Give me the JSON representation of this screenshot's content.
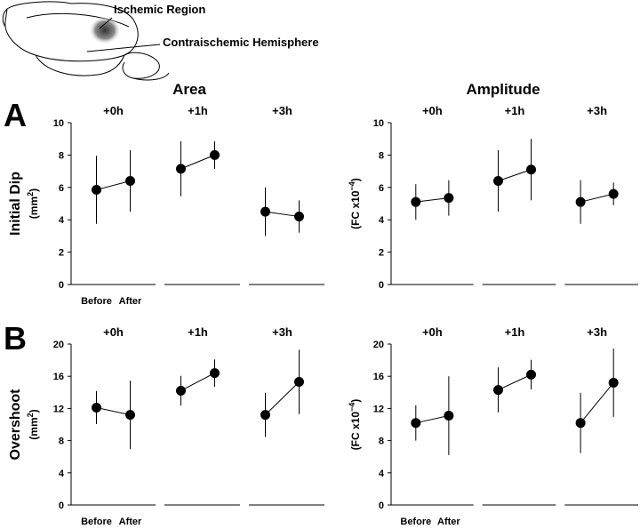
{
  "illustration": {
    "labels": [
      "Ischemic Region",
      "Contraischemic Hemisphere"
    ]
  },
  "columns": [
    "Area",
    "Amplitude"
  ],
  "panels": [
    "A",
    "B"
  ],
  "chart_data": [
    {
      "type": "dot-errorbar",
      "ylabel": "Initial Dip",
      "unit_parts": [
        "(mm",
        "2",
        ")"
      ],
      "groups": [
        "+0h",
        "+1h",
        "+3h"
      ],
      "categories": [
        "Before",
        "After"
      ],
      "values": [
        [
          5.85,
          6.4
        ],
        [
          7.15,
          8.0
        ],
        [
          4.5,
          4.2
        ]
      ],
      "errors": [
        [
          2.1,
          1.9
        ],
        [
          1.7,
          0.85
        ],
        [
          1.5,
          1.0
        ]
      ],
      "ylim": [
        0,
        10
      ],
      "yticks": [
        0,
        2,
        4,
        6,
        8,
        10
      ],
      "color": "#000000"
    },
    {
      "type": "dot-errorbar",
      "unit_parts": [
        "(FC x10",
        "−4",
        ")"
      ],
      "groups": [
        "+0h",
        "+1h",
        "+3h"
      ],
      "values": [
        [
          5.1,
          5.35
        ],
        [
          6.4,
          7.1
        ],
        [
          5.1,
          5.6
        ]
      ],
      "errors": [
        [
          1.1,
          1.1
        ],
        [
          1.9,
          1.9
        ],
        [
          1.35,
          0.7
        ]
      ],
      "ylim": [
        0,
        10
      ],
      "yticks": [
        0,
        2,
        4,
        6,
        8,
        10
      ],
      "color": "#000000"
    },
    {
      "type": "dot-errorbar",
      "ylabel": "Overshoot",
      "unit_parts": [
        "(mm",
        "2",
        ")"
      ],
      "groups": [
        "+0h",
        "+1h",
        "+3h"
      ],
      "categories": [
        "Before",
        "After"
      ],
      "values": [
        [
          12.1,
          11.2
        ],
        [
          14.2,
          16.4
        ],
        [
          11.2,
          15.3
        ]
      ],
      "errors": [
        [
          2.05,
          4.25
        ],
        [
          1.85,
          1.7
        ],
        [
          2.75,
          4.0
        ]
      ],
      "ylim": [
        0,
        20
      ],
      "yticks": [
        0,
        4,
        8,
        12,
        16,
        20
      ],
      "color": "#000000"
    },
    {
      "type": "dot-errorbar",
      "unit_parts": [
        "(FC x10",
        "−4",
        ")"
      ],
      "groups": [
        "+0h",
        "+1h",
        "+3h"
      ],
      "categories": [
        "Before",
        "After"
      ],
      "values": [
        [
          10.2,
          11.1
        ],
        [
          14.3,
          16.2
        ],
        [
          10.2,
          15.2
        ]
      ],
      "errors": [
        [
          2.2,
          4.9
        ],
        [
          2.8,
          1.85
        ],
        [
          3.75,
          4.25
        ]
      ],
      "ylim": [
        0,
        20
      ],
      "yticks": [
        0,
        4,
        8,
        12,
        16,
        20
      ],
      "color": "#000000"
    }
  ]
}
